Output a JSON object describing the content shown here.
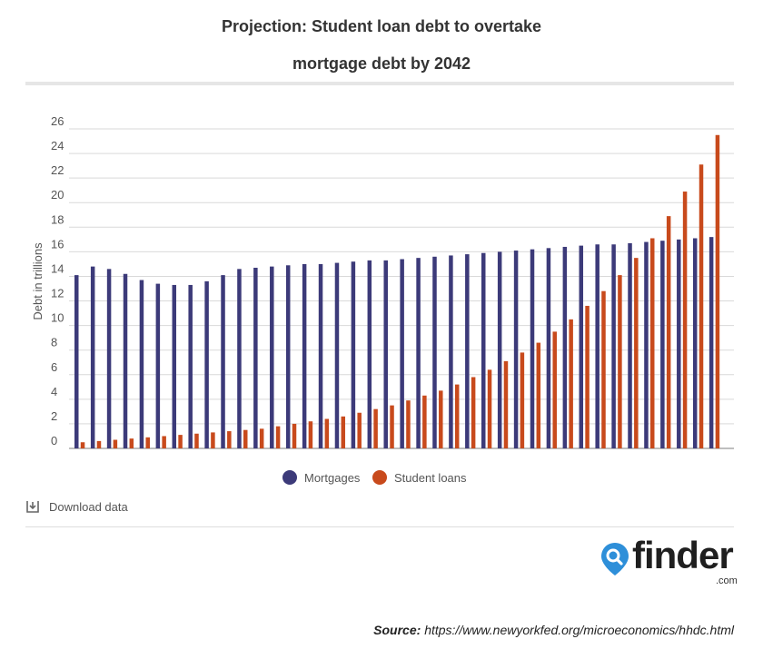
{
  "title_line1": "Projection: Student loan debt to overtake",
  "title_line2": "mortgage debt by 2042",
  "colors": {
    "mortgages": "#3c3a79",
    "student_loans": "#c84a1c",
    "logo_blue": "#2e8fd9"
  },
  "legend": {
    "mortgages": "Mortgages",
    "student_loans": "Student loans"
  },
  "download_label": "Download data",
  "logo": {
    "word": "finder",
    "suffix": ".com"
  },
  "source": {
    "label": "Source:",
    "url": "https://www.newyorkfed.org/microeconomics/hhdc.html"
  },
  "chart_data": {
    "type": "bar",
    "title": "Projection: Student loan debt to overtake mortgage debt by 2042",
    "xlabel": "",
    "ylabel": "Debt in trillions",
    "ylim": [
      0,
      26
    ],
    "yticks": [
      0,
      2,
      4,
      6,
      8,
      10,
      12,
      14,
      16,
      18,
      20,
      22,
      24,
      26
    ],
    "grid": true,
    "legend_position": "bottom",
    "series": [
      {
        "name": "Mortgages",
        "values": [
          14.1,
          14.8,
          14.6,
          14.2,
          13.7,
          13.4,
          13.3,
          13.3,
          13.6,
          14.1,
          14.6,
          14.7,
          14.8,
          14.9,
          15.0,
          15.0,
          15.1,
          15.2,
          15.3,
          15.3,
          15.4,
          15.5,
          15.6,
          15.7,
          15.8,
          15.9,
          16.0,
          16.1,
          16.2,
          16.3,
          16.4,
          16.5,
          16.6,
          16.6,
          16.7,
          16.8,
          16.9,
          17.0,
          17.1,
          17.2
        ]
      },
      {
        "name": "Student loans",
        "values": [
          0.5,
          0.6,
          0.7,
          0.8,
          0.9,
          1.0,
          1.1,
          1.2,
          1.3,
          1.4,
          1.5,
          1.6,
          1.8,
          2.0,
          2.2,
          2.4,
          2.6,
          2.9,
          3.2,
          3.5,
          3.9,
          4.3,
          4.7,
          5.2,
          5.8,
          6.4,
          7.1,
          7.8,
          8.6,
          9.5,
          10.5,
          11.6,
          12.8,
          14.1,
          15.5,
          17.1,
          18.9,
          20.9,
          23.1,
          25.5
        ]
      }
    ]
  }
}
